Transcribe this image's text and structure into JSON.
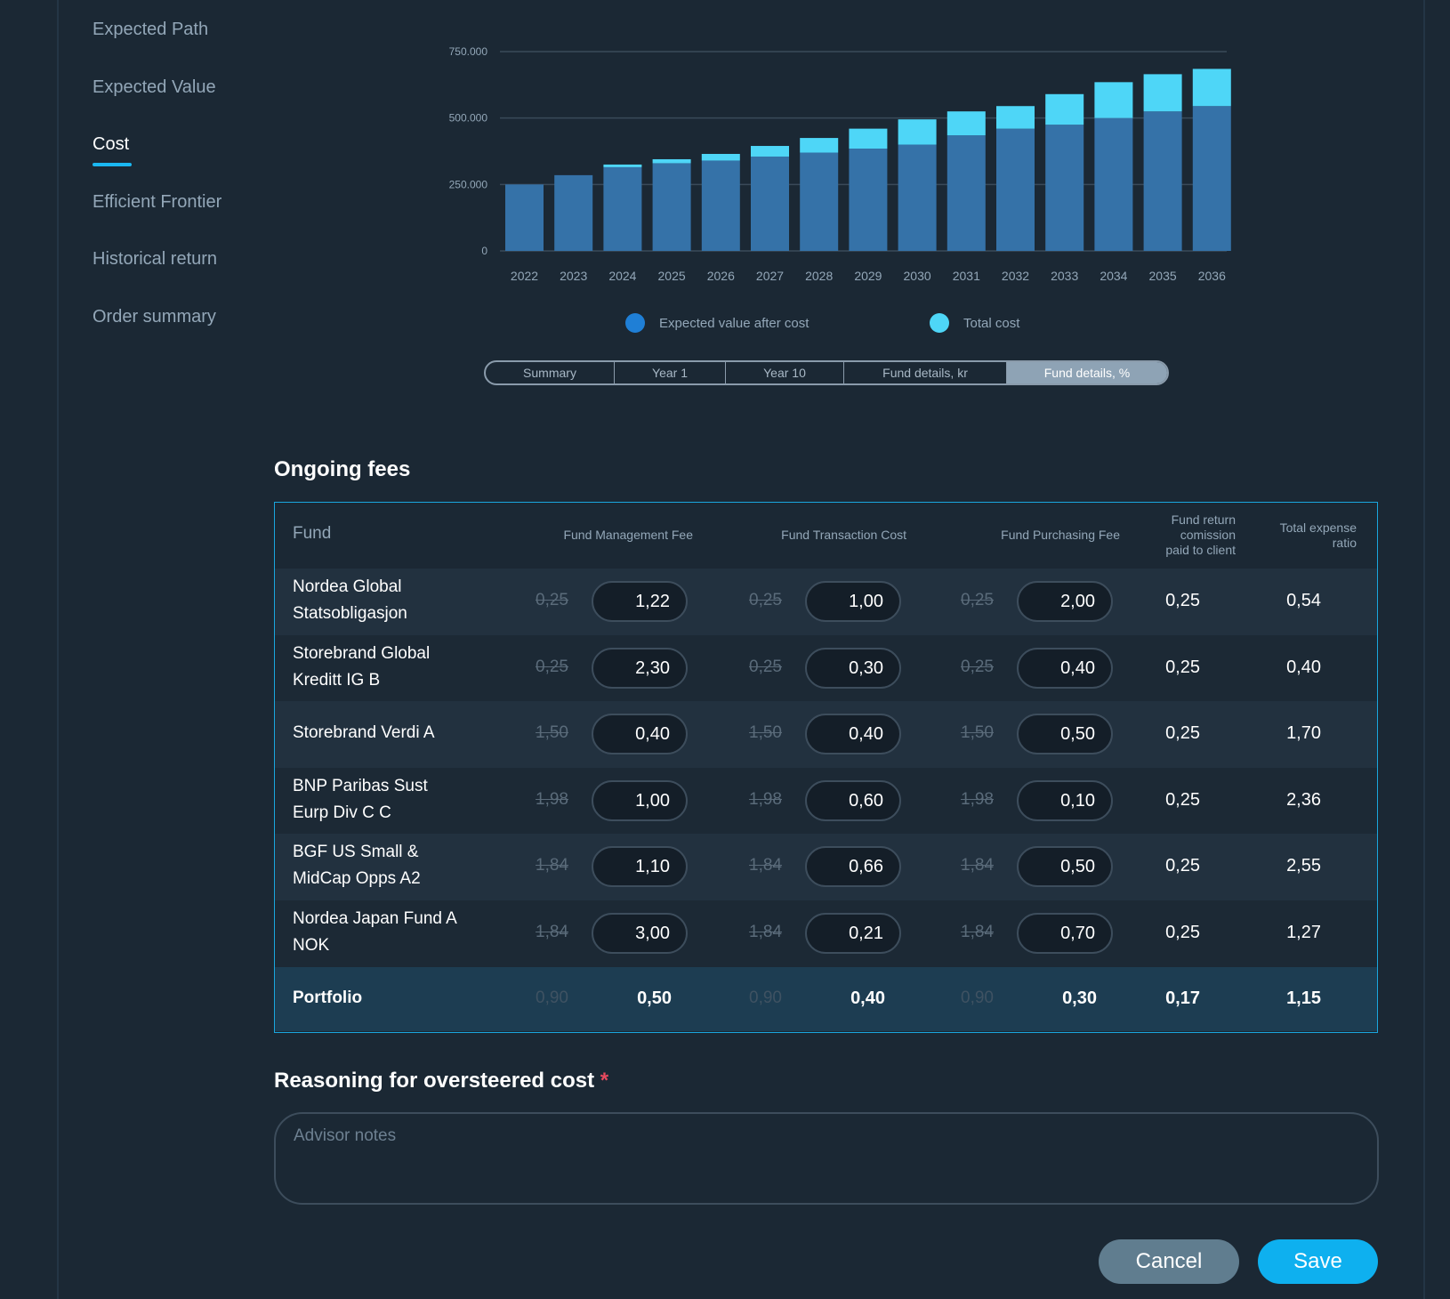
{
  "nav": {
    "items": [
      {
        "label": "Expected Path",
        "active": false
      },
      {
        "label": "Expected Value",
        "active": false
      },
      {
        "label": "Cost",
        "active": true
      },
      {
        "label": "Efficient Frontier",
        "active": false
      },
      {
        "label": "Historical return",
        "active": false
      },
      {
        "label": "Order summary",
        "active": false
      }
    ]
  },
  "chart_data": {
    "type": "bar",
    "stacked": true,
    "categories": [
      "2022",
      "2023",
      "2024",
      "2025",
      "2026",
      "2027",
      "2028",
      "2029",
      "2030",
      "2031",
      "2032",
      "2033",
      "2034",
      "2035",
      "2036"
    ],
    "series": [
      {
        "name": "Expected value after cost",
        "color": "#3572a8",
        "values": [
          250000,
          285000,
          315000,
          330000,
          340000,
          355000,
          370000,
          385000,
          400000,
          435000,
          460000,
          475000,
          500000,
          525000,
          545000
        ]
      },
      {
        "name": "Total cost",
        "color": "#4ed6f7",
        "values": [
          0,
          0,
          10000,
          15000,
          25000,
          40000,
          55000,
          75000,
          95000,
          90000,
          85000,
          115000,
          135000,
          140000,
          140000
        ]
      }
    ],
    "yticks": [
      "0",
      "250.000",
      "500.000",
      "750.000"
    ],
    "ylim": [
      0,
      750000
    ],
    "grid": true,
    "legend": "bottom"
  },
  "tabs": [
    {
      "label": "Summary",
      "active": false
    },
    {
      "label": "Year 1",
      "active": false
    },
    {
      "label": "Year 10",
      "active": false
    },
    {
      "label": "Fund details, kr",
      "active": false
    },
    {
      "label": "Fund details, %",
      "active": true
    }
  ],
  "ongoing_fees": {
    "title": "Ongoing fees",
    "headers": {
      "fund": "Fund",
      "management": "Fund Management Fee",
      "transaction": "Fund Transaction Cost",
      "purchasing": "Fund Purchasing Fee",
      "commission_l1": "Fund return",
      "commission_l2": "comission",
      "commission_l3": "paid to client",
      "ter_l1": "Total expense",
      "ter_l2": "ratio"
    },
    "rows": [
      {
        "fund_l1": "Nordea Global",
        "fund_l2": "Statsobligasjon",
        "mgmt_orig": "0,25",
        "mgmt": "1,22",
        "trans_orig": "0,25",
        "trans": "1,00",
        "purch_orig": "0,25",
        "purch": "2,00",
        "commission": "0,25",
        "ter": "0,54"
      },
      {
        "fund_l1": "Storebrand Global",
        "fund_l2": "Kreditt IG B",
        "mgmt_orig": "0,25",
        "mgmt": "2,30",
        "trans_orig": "0,25",
        "trans": "0,30",
        "purch_orig": "0,25",
        "purch": "0,40",
        "commission": "0,25",
        "ter": "0,40"
      },
      {
        "fund_l1": "Storebrand Verdi A",
        "fund_l2": "",
        "mgmt_orig": "1,50",
        "mgmt": "0,40",
        "trans_orig": "1,50",
        "trans": "0,40",
        "purch_orig": "1,50",
        "purch": "0,50",
        "commission": "0,25",
        "ter": "1,70"
      },
      {
        "fund_l1": "BNP Paribas Sust",
        "fund_l2": "Eurp Div C C",
        "mgmt_orig": "1,98",
        "mgmt": "1,00",
        "trans_orig": "1,98",
        "trans": "0,60",
        "purch_orig": "1,98",
        "purch": "0,10",
        "commission": "0,25",
        "ter": "2,36"
      },
      {
        "fund_l1": "BGF US Small &",
        "fund_l2": "MidCap Opps A2",
        "mgmt_orig": "1,84",
        "mgmt": "1,10",
        "trans_orig": "1,84",
        "trans": "0,66",
        "purch_orig": "1,84",
        "purch": "0,50",
        "commission": "0,25",
        "ter": "2,55"
      },
      {
        "fund_l1": "Nordea Japan Fund A",
        "fund_l2": "NOK",
        "mgmt_orig": "1,84",
        "mgmt": "3,00",
        "trans_orig": "1,84",
        "trans": "0,21",
        "purch_orig": "1,84",
        "purch": "0,70",
        "commission": "0,25",
        "ter": "1,27"
      }
    ],
    "portfolio": {
      "label": "Portfolio",
      "mgmt_orig": "0,90",
      "mgmt": "0,50",
      "trans_orig": "0,90",
      "trans": "0,40",
      "purch_orig": "0,90",
      "purch": "0,30",
      "commission": "0,17",
      "ter": "1,15"
    }
  },
  "reasoning": {
    "title": "Reasoning for oversteered cost",
    "required_mark": "*",
    "placeholder": "Advisor notes"
  },
  "actions": {
    "cancel": "Cancel",
    "save": "Save"
  }
}
